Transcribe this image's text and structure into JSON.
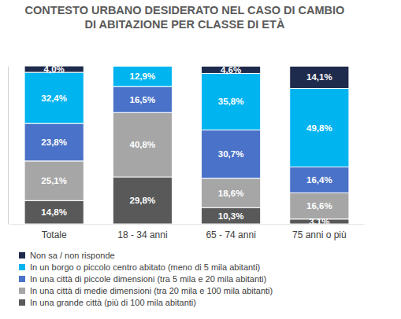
{
  "chart_data": {
    "type": "bar",
    "title": "CONTESTO URBANO DESIDERATO NEL CASO DI CAMBIO DI ABITAZIONE PER CLASSE DI ETÀ",
    "categories": [
      "Totale",
      "18 - 34 anni",
      "65 - 74 anni",
      "75 anni o più"
    ],
    "stacked": true,
    "data_labels": true,
    "tick_labels": "x",
    "legend": "bottom",
    "ylim": [
      0,
      100.1
    ],
    "yticks": [],
    "series": [
      {
        "name": "In una grande città (più di 100 mila abitanti)",
        "color": "#595959",
        "values": [
          14.8,
          29.8,
          10.3,
          3.1
        ],
        "value_labels": [
          "14,8%",
          "29,8%",
          "10,3%",
          "3,1%"
        ]
      },
      {
        "name": "In una città di medie dimensioni (tra 20 mila e 100 mila abitanti)",
        "color": "#a6a6a6",
        "values": [
          25.1,
          40.8,
          18.6,
          16.6
        ],
        "value_labels": [
          "25,1%",
          "40,8%",
          "18,6%",
          "16,6%"
        ]
      },
      {
        "name": "In una città di piccole dimensioni (tra 5 mila e 20 mila abitanti)",
        "color": "#4a72c8",
        "values": [
          23.8,
          16.5,
          30.7,
          16.4
        ],
        "value_labels": [
          "23,8%",
          "16,5%",
          "30,7%",
          "16,4%"
        ]
      },
      {
        "name": "In un borgo o piccolo centro abitato (meno di 5 mila abitanti)",
        "color": "#00b4f0",
        "values": [
          32.4,
          12.9,
          35.8,
          49.8
        ],
        "value_labels": [
          "32,4%",
          "12,9%",
          "35,8%",
          "49,8%"
        ]
      },
      {
        "name": "Non sa / non risponde",
        "color": "#1f2b4d",
        "values": [
          4.0,
          null,
          4.6,
          14.1
        ],
        "value_labels": [
          "4,0%",
          null,
          "4,6%",
          "14,1%"
        ]
      }
    ]
  }
}
